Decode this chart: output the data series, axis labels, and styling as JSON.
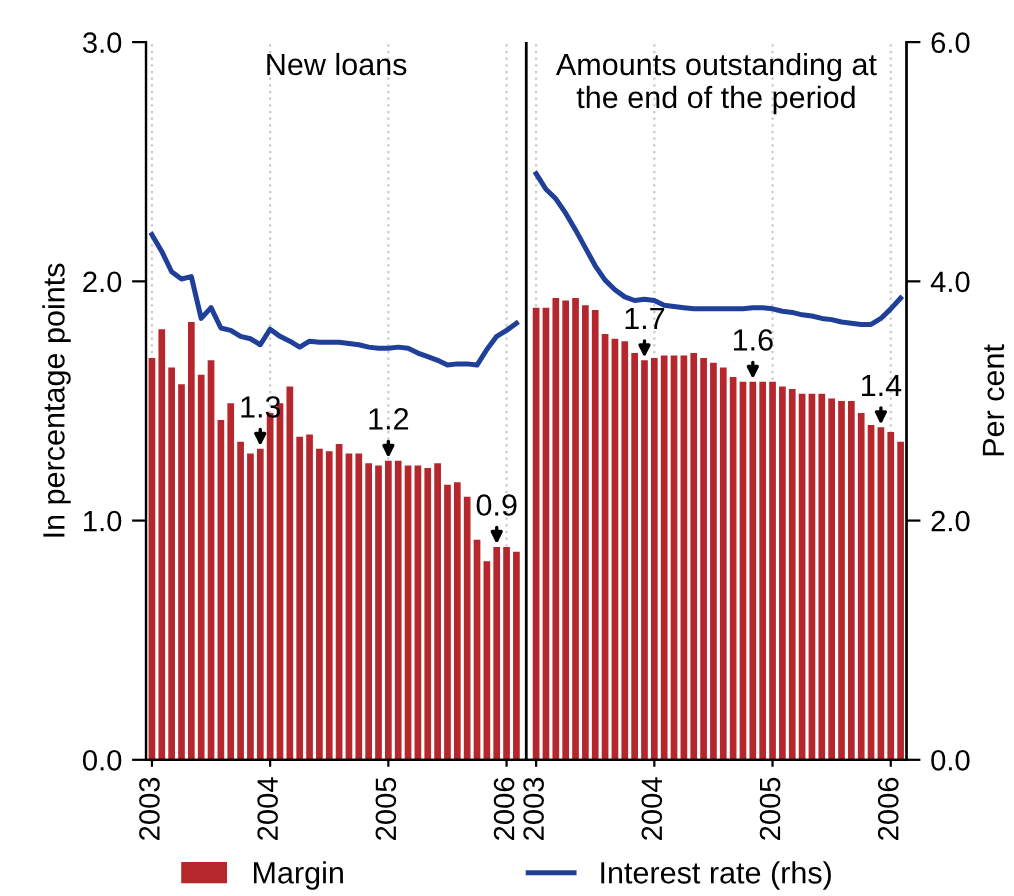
{
  "chart_data": {
    "type": "bar",
    "ylabel": "In percentage points",
    "y2label": "Per cent",
    "categories": [
      "2003",
      null,
      null,
      null,
      null,
      null,
      null,
      null,
      null,
      null,
      null,
      null,
      "2004",
      null,
      null,
      null,
      null,
      null,
      null,
      null,
      null,
      null,
      null,
      null,
      "2005",
      null,
      null,
      null,
      null,
      null,
      null,
      null,
      null,
      null,
      null,
      null,
      "2006",
      null,
      null,
      "2003",
      null,
      null,
      null,
      null,
      null,
      null,
      null,
      null,
      null,
      null,
      null,
      "2004",
      null,
      null,
      null,
      null,
      null,
      null,
      null,
      null,
      null,
      null,
      null,
      "2005",
      null,
      null,
      null,
      null,
      null,
      null,
      null,
      null,
      null,
      null,
      null,
      "2006",
      null
    ],
    "series": [
      {
        "name": "Margin",
        "color": "#b5272d",
        "values": [
          1.68,
          1.8,
          1.64,
          1.57,
          1.83,
          1.61,
          1.67,
          1.42,
          1.49,
          1.33,
          1.28,
          1.3,
          1.45,
          1.49,
          1.56,
          1.35,
          1.36,
          1.3,
          1.29,
          1.32,
          1.28,
          1.28,
          1.24,
          1.23,
          1.25,
          1.25,
          1.23,
          1.23,
          1.22,
          1.24,
          1.15,
          1.16,
          1.1,
          0.92,
          0.83,
          0.89,
          0.89,
          0.87,
          null,
          1.89,
          1.89,
          1.93,
          1.92,
          1.93,
          1.9,
          1.88,
          1.78,
          1.76,
          1.75,
          1.7,
          1.67,
          1.68,
          1.69,
          1.69,
          1.69,
          1.7,
          1.68,
          1.66,
          1.64,
          1.6,
          1.58,
          1.58,
          1.58,
          1.58,
          1.56,
          1.55,
          1.53,
          1.53,
          1.53,
          1.51,
          1.5,
          1.5,
          1.45,
          1.4,
          1.39,
          1.37,
          1.33
        ],
        "value_labels": [
          null,
          null,
          null,
          null,
          null,
          null,
          null,
          null,
          null,
          null,
          null,
          "1.3",
          null,
          null,
          null,
          null,
          null,
          null,
          null,
          null,
          null,
          null,
          null,
          null,
          "1.2",
          null,
          null,
          null,
          null,
          null,
          null,
          null,
          null,
          null,
          null,
          "0.9",
          null,
          null,
          null,
          null,
          null,
          null,
          null,
          null,
          null,
          null,
          null,
          null,
          null,
          null,
          "1.7",
          null,
          null,
          null,
          null,
          null,
          null,
          null,
          null,
          null,
          null,
          "1.6",
          null,
          null,
          null,
          null,
          null,
          null,
          null,
          null,
          null,
          null,
          null,
          null,
          "1.4",
          null,
          null
        ]
      },
      {
        "name": "Interest rate (rhs)",
        "type": "line",
        "axis": "y2",
        "color": "#1f3f99",
        "values": [
          4.39,
          4.25,
          4.08,
          4.02,
          4.04,
          3.69,
          3.78,
          3.61,
          3.59,
          3.54,
          3.52,
          3.47,
          3.6,
          3.54,
          3.5,
          3.45,
          3.5,
          3.49,
          3.49,
          3.49,
          3.48,
          3.47,
          3.45,
          3.44,
          3.44,
          3.45,
          3.44,
          3.4,
          3.37,
          3.34,
          3.3,
          3.31,
          3.31,
          3.3,
          3.43,
          3.54,
          3.59,
          3.65,
          null,
          4.9,
          4.77,
          4.69,
          4.57,
          4.43,
          4.28,
          4.13,
          4.01,
          3.93,
          3.87,
          3.84,
          3.85,
          3.84,
          3.8,
          3.79,
          3.78,
          3.77,
          3.77,
          3.77,
          3.77,
          3.77,
          3.77,
          3.78,
          3.78,
          3.77,
          3.75,
          3.74,
          3.72,
          3.71,
          3.69,
          3.68,
          3.66,
          3.65,
          3.64,
          3.64,
          3.69,
          3.77,
          3.86
        ]
      }
    ],
    "ylim": [
      0,
      3
    ],
    "yticks": [
      {
        "value": 0,
        "label": "0.0"
      },
      {
        "value": 1,
        "label": "1.0"
      },
      {
        "value": 2,
        "label": "2.0"
      },
      {
        "value": 3,
        "label": "3.0"
      }
    ],
    "y2lim": [
      0,
      6
    ],
    "y2ticks": [
      {
        "value": 0,
        "label": "0.0"
      },
      {
        "value": 2,
        "label": "2.0"
      },
      {
        "value": 4,
        "label": "4.0"
      },
      {
        "value": 6,
        "label": "6.0"
      }
    ],
    "annotations": [
      "New loans",
      "Amounts outstanding at\nthe end of the period"
    ],
    "grid": "x",
    "legend": "bottom"
  }
}
